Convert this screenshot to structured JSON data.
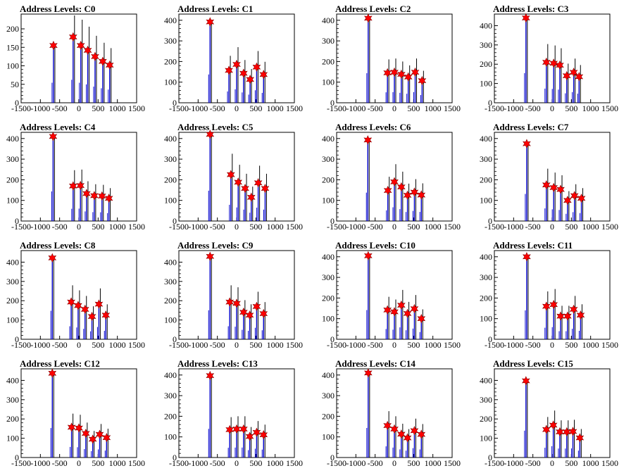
{
  "title_prefix": "Address Levels: ",
  "colors": {
    "histogram": "#0000cc",
    "peak_marker": "#ff0000",
    "axis": "#000000"
  },
  "chart_data": [
    {
      "type": "bar",
      "title": "Address Levels: C0",
      "xlim": [
        -1500,
        1500
      ],
      "ylim": [
        0,
        240
      ],
      "yticks": [
        0,
        50,
        100,
        150,
        200
      ],
      "xticks": [
        -1500,
        -1000,
        -500,
        0,
        500,
        1000,
        1500
      ],
      "peaks": [
        {
          "x": -660,
          "y": 155
        },
        {
          "x": -150,
          "y": 178
        },
        {
          "x": 50,
          "y": 155
        },
        {
          "x": 230,
          "y": 142
        },
        {
          "x": 420,
          "y": 125
        },
        {
          "x": 620,
          "y": 112
        },
        {
          "x": 800,
          "y": 102
        }
      ]
    },
    {
      "type": "bar",
      "title": "Address Levels: C1",
      "xlim": [
        -1500,
        1500
      ],
      "ylim": [
        0,
        430
      ],
      "yticks": [
        0,
        100,
        200,
        300,
        400
      ],
      "xticks": [
        -1500,
        -1000,
        -500,
        0,
        500,
        1000,
        1500
      ],
      "peaks": [
        {
          "x": -690,
          "y": 392
        },
        {
          "x": -200,
          "y": 157
        },
        {
          "x": 0,
          "y": 186
        },
        {
          "x": 180,
          "y": 143
        },
        {
          "x": 350,
          "y": 113
        },
        {
          "x": 520,
          "y": 173
        },
        {
          "x": 700,
          "y": 137
        }
      ]
    },
    {
      "type": "bar",
      "title": "Address Levels: C2",
      "xlim": [
        -1500,
        1500
      ],
      "ylim": [
        0,
        430
      ],
      "yticks": [
        0,
        100,
        200,
        300,
        400
      ],
      "xticks": [
        -1500,
        -1000,
        -500,
        0,
        500,
        1000,
        1500
      ],
      "peaks": [
        {
          "x": -680,
          "y": 410
        },
        {
          "x": -180,
          "y": 145
        },
        {
          "x": 0,
          "y": 148
        },
        {
          "x": 180,
          "y": 138
        },
        {
          "x": 360,
          "y": 125
        },
        {
          "x": 540,
          "y": 148
        },
        {
          "x": 720,
          "y": 107
        }
      ]
    },
    {
      "type": "bar",
      "title": "Address Levels: C3",
      "xlim": [
        -1500,
        1500
      ],
      "ylim": [
        0,
        460
      ],
      "yticks": [
        0,
        100,
        200,
        300,
        400
      ],
      "xticks": [
        -1500,
        -1000,
        -500,
        0,
        500,
        1000,
        1500
      ],
      "peaks": [
        {
          "x": -680,
          "y": 440
        },
        {
          "x": -150,
          "y": 210
        },
        {
          "x": 40,
          "y": 205
        },
        {
          "x": 200,
          "y": 195
        },
        {
          "x": 380,
          "y": 140
        },
        {
          "x": 560,
          "y": 158
        },
        {
          "x": 700,
          "y": 135
        }
      ]
    },
    {
      "type": "bar",
      "title": "Address Levels: C4",
      "xlim": [
        -1500,
        1500
      ],
      "ylim": [
        0,
        430
      ],
      "yticks": [
        0,
        100,
        200,
        300,
        400
      ],
      "xticks": [
        -1500,
        -1000,
        -500,
        0,
        500,
        1000,
        1500
      ],
      "peaks": [
        {
          "x": -670,
          "y": 410
        },
        {
          "x": -150,
          "y": 170
        },
        {
          "x": 40,
          "y": 172
        },
        {
          "x": 200,
          "y": 133
        },
        {
          "x": 400,
          "y": 123
        },
        {
          "x": 600,
          "y": 121
        },
        {
          "x": 780,
          "y": 110
        }
      ]
    },
    {
      "type": "bar",
      "title": "Address Levels: C5",
      "xlim": [
        -1500,
        1500
      ],
      "ylim": [
        0,
        430
      ],
      "yticks": [
        0,
        100,
        200,
        300,
        400
      ],
      "xticks": [
        -1500,
        -1000,
        -500,
        0,
        500,
        1000,
        1500
      ],
      "peaks": [
        {
          "x": -690,
          "y": 420
        },
        {
          "x": -150,
          "y": 225
        },
        {
          "x": 40,
          "y": 188
        },
        {
          "x": 220,
          "y": 158
        },
        {
          "x": 380,
          "y": 115
        },
        {
          "x": 560,
          "y": 185
        },
        {
          "x": 740,
          "y": 158
        }
      ]
    },
    {
      "type": "bar",
      "title": "Address Levels: C6",
      "xlim": [
        -1500,
        1500
      ],
      "ylim": [
        0,
        430
      ],
      "yticks": [
        0,
        100,
        200,
        300,
        400
      ],
      "xticks": [
        -1500,
        -1000,
        -500,
        0,
        500,
        1000,
        1500
      ],
      "peaks": [
        {
          "x": -690,
          "y": 393
        },
        {
          "x": -170,
          "y": 148
        },
        {
          "x": 0,
          "y": 190
        },
        {
          "x": 180,
          "y": 165
        },
        {
          "x": 340,
          "y": 125
        },
        {
          "x": 520,
          "y": 140
        },
        {
          "x": 700,
          "y": 126
        }
      ]
    },
    {
      "type": "bar",
      "title": "Address Levels: C7",
      "xlim": [
        -1500,
        1500
      ],
      "ylim": [
        0,
        430
      ],
      "yticks": [
        0,
        100,
        200,
        300,
        400
      ],
      "xticks": [
        -1500,
        -1000,
        -500,
        0,
        500,
        1000,
        1500
      ],
      "peaks": [
        {
          "x": -660,
          "y": 375
        },
        {
          "x": -150,
          "y": 175
        },
        {
          "x": 40,
          "y": 162
        },
        {
          "x": 220,
          "y": 153
        },
        {
          "x": 400,
          "y": 100
        },
        {
          "x": 580,
          "y": 123
        },
        {
          "x": 760,
          "y": 110
        }
      ]
    },
    {
      "type": "bar",
      "title": "Address Levels: C8",
      "xlim": [
        -1500,
        1500
      ],
      "ylim": [
        0,
        460
      ],
      "yticks": [
        0,
        100,
        200,
        300,
        400
      ],
      "xticks": [
        -1500,
        -1000,
        -500,
        0,
        500,
        1000,
        1500
      ],
      "peaks": [
        {
          "x": -690,
          "y": 422
        },
        {
          "x": -200,
          "y": 193
        },
        {
          "x": -20,
          "y": 175
        },
        {
          "x": 160,
          "y": 155
        },
        {
          "x": 340,
          "y": 118
        },
        {
          "x": 520,
          "y": 182
        },
        {
          "x": 700,
          "y": 125
        }
      ]
    },
    {
      "type": "bar",
      "title": "Address Levels: C9",
      "xlim": [
        -1500,
        1500
      ],
      "ylim": [
        0,
        460
      ],
      "yticks": [
        0,
        100,
        200,
        300,
        400
      ],
      "xticks": [
        -1500,
        -1000,
        -500,
        0,
        500,
        1000,
        1500
      ],
      "peaks": [
        {
          "x": -690,
          "y": 430
        },
        {
          "x": -180,
          "y": 193
        },
        {
          "x": 0,
          "y": 186
        },
        {
          "x": 180,
          "y": 140
        },
        {
          "x": 340,
          "y": 125
        },
        {
          "x": 520,
          "y": 170
        },
        {
          "x": 700,
          "y": 133
        }
      ]
    },
    {
      "type": "bar",
      "title": "Address Levels: C10",
      "xlim": [
        -1500,
        1500
      ],
      "ylim": [
        0,
        430
      ],
      "yticks": [
        0,
        100,
        200,
        300,
        400
      ],
      "xticks": [
        -1500,
        -1000,
        -500,
        0,
        500,
        1000,
        1500
      ],
      "peaks": [
        {
          "x": -680,
          "y": 405
        },
        {
          "x": -180,
          "y": 142
        },
        {
          "x": 0,
          "y": 133
        },
        {
          "x": 180,
          "y": 165
        },
        {
          "x": 340,
          "y": 125
        },
        {
          "x": 520,
          "y": 148
        },
        {
          "x": 700,
          "y": 100
        }
      ]
    },
    {
      "type": "bar",
      "title": "Address Levels: C11",
      "xlim": [
        -1500,
        1500
      ],
      "ylim": [
        0,
        430
      ],
      "yticks": [
        0,
        100,
        200,
        300,
        400
      ],
      "xticks": [
        -1500,
        -1000,
        -500,
        0,
        500,
        1000,
        1500
      ],
      "peaks": [
        {
          "x": -660,
          "y": 400
        },
        {
          "x": -150,
          "y": 160
        },
        {
          "x": 40,
          "y": 168
        },
        {
          "x": 220,
          "y": 112
        },
        {
          "x": 400,
          "y": 112
        },
        {
          "x": 560,
          "y": 145
        },
        {
          "x": 740,
          "y": 117
        }
      ]
    },
    {
      "type": "bar",
      "title": "Address Levels: C12",
      "xlim": [
        -1500,
        1500
      ],
      "ylim": [
        0,
        460
      ],
      "yticks": [
        0,
        100,
        200,
        300,
        400
      ],
      "xticks": [
        -1500,
        -1000,
        -500,
        0,
        500,
        1000,
        1500
      ],
      "peaks": [
        {
          "x": -690,
          "y": 437
        },
        {
          "x": -190,
          "y": 157
        },
        {
          "x": 0,
          "y": 153
        },
        {
          "x": 180,
          "y": 125
        },
        {
          "x": 360,
          "y": 95
        },
        {
          "x": 540,
          "y": 120
        },
        {
          "x": 720,
          "y": 103
        }
      ]
    },
    {
      "type": "bar",
      "title": "Address Levels: C13",
      "xlim": [
        -1500,
        1500
      ],
      "ylim": [
        0,
        430
      ],
      "yticks": [
        0,
        100,
        200,
        300,
        400
      ],
      "xticks": [
        -1500,
        -1000,
        -500,
        0,
        500,
        1000,
        1500
      ],
      "peaks": [
        {
          "x": -690,
          "y": 397
        },
        {
          "x": -180,
          "y": 135
        },
        {
          "x": 0,
          "y": 138
        },
        {
          "x": 180,
          "y": 138
        },
        {
          "x": 340,
          "y": 102
        },
        {
          "x": 520,
          "y": 122
        },
        {
          "x": 700,
          "y": 110
        }
      ]
    },
    {
      "type": "bar",
      "title": "Address Levels: C14",
      "xlim": [
        -1500,
        1500
      ],
      "ylim": [
        0,
        430
      ],
      "yticks": [
        0,
        100,
        200,
        300,
        400
      ],
      "xticks": [
        -1500,
        -1000,
        -500,
        0,
        500,
        1000,
        1500
      ],
      "peaks": [
        {
          "x": -680,
          "y": 410
        },
        {
          "x": -180,
          "y": 155
        },
        {
          "x": 0,
          "y": 138
        },
        {
          "x": 180,
          "y": 113
        },
        {
          "x": 340,
          "y": 95
        },
        {
          "x": 520,
          "y": 130
        },
        {
          "x": 700,
          "y": 112
        }
      ]
    },
    {
      "type": "bar",
      "title": "Address Levels: C15",
      "xlim": [
        -1500,
        1500
      ],
      "ylim": [
        0,
        460
      ],
      "yticks": [
        0,
        100,
        200,
        300,
        400
      ],
      "xticks": [
        -1500,
        -1000,
        -500,
        0,
        500,
        1000,
        1500
      ],
      "peaks": [
        {
          "x": -680,
          "y": 398
        },
        {
          "x": -150,
          "y": 145
        },
        {
          "x": 30,
          "y": 168
        },
        {
          "x": 200,
          "y": 133
        },
        {
          "x": 380,
          "y": 133
        },
        {
          "x": 540,
          "y": 135
        },
        {
          "x": 720,
          "y": 102
        }
      ]
    }
  ]
}
